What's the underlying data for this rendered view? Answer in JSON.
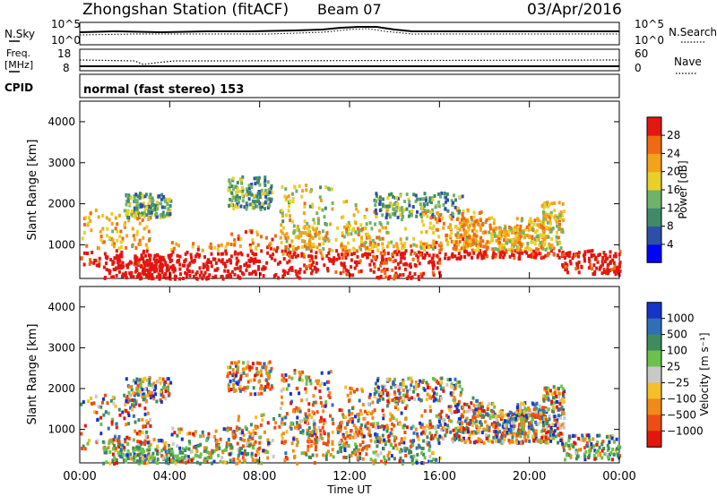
{
  "header": {
    "station": "Zhongshan Station (fitACF)",
    "beam": "Beam 07",
    "date": "03/Apr/2016"
  },
  "status_panels": {
    "nsky_label": "N.Sky",
    "nsearch_label": "N.Search",
    "freq_label_line1": "Freq.",
    "freq_label_line2": "[MHz]",
    "nave_label": "Nave",
    "cpid_label": "CPID",
    "cpid_value": "normal (fast stereo) 153",
    "noise_ticks": [
      "10^5",
      "10^0"
    ],
    "freq_ticks": [
      "18",
      "8"
    ],
    "nave_ticks": [
      "60",
      "0"
    ]
  },
  "chart_data": [
    {
      "type": "heatmap",
      "name": "power",
      "x_unit": "hours UT",
      "xlim": [
        0,
        24
      ],
      "ylabel": "Slant Range [km]",
      "ylim": [
        180,
        4500
      ],
      "yticks": [
        "1000",
        "2000",
        "3000",
        "4000"
      ],
      "colorbar": {
        "label": "Power [dB]",
        "ticks": [
          "4",
          "8",
          "12",
          "16",
          "20",
          "24",
          "28"
        ],
        "range": [
          0,
          30
        ],
        "colors": [
          "#0000ff",
          "#2e4fa8",
          "#3f8a6a",
          "#6fb36a",
          "#e8cf2a",
          "#f3a21b",
          "#f06a12",
          "#e2170f"
        ]
      }
    },
    {
      "type": "heatmap",
      "name": "velocity",
      "x_unit": "hours UT",
      "xlim": [
        0,
        24
      ],
      "xlabel": "Time UT",
      "xticks": [
        "00:00",
        "04:00",
        "08:00",
        "12:00",
        "16:00",
        "20:00",
        "00:00"
      ],
      "ylabel": "Slant Range [km]",
      "ylim": [
        180,
        4500
      ],
      "yticks": [
        "1000",
        "2000",
        "3000",
        "4000"
      ],
      "colorbar": {
        "label": "Velocity [m s⁻¹]",
        "ticks": [
          "1000",
          "500",
          "100",
          "25",
          "−25",
          "−100",
          "−500",
          "−1000"
        ],
        "colors": [
          "#1733c8",
          "#2f6fb8",
          "#3e8c5c",
          "#6bc14a",
          "#c8c8c8",
          "#f3c02a",
          "#f08a18",
          "#ec4d12",
          "#e3160c"
        ]
      }
    }
  ]
}
